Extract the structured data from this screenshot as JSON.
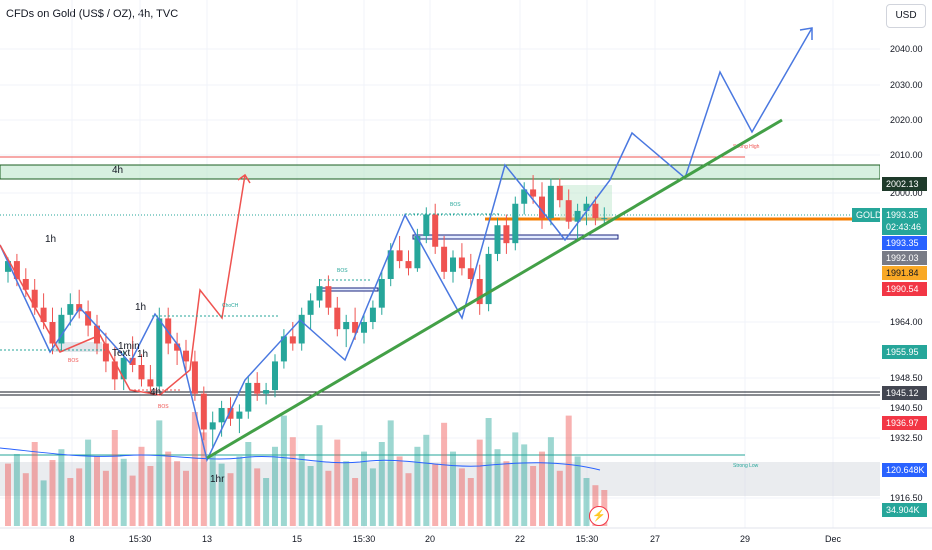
{
  "header": {
    "title": "CFDs on Gold (US$ / OZ), 4h, TVC",
    "currency_button": "USD"
  },
  "chart_data": {
    "type": "candlestick",
    "title": "CFDs on Gold (US$ / OZ), 4h, TVC",
    "y_ticks": [
      "2040.00",
      "2030.00",
      "2020.00",
      "2010.00",
      "2000.00",
      "1964.00",
      "1948.50",
      "1940.50",
      "1932.50",
      "1916.50"
    ],
    "x_ticks": [
      "8",
      "15:30",
      "13",
      "15",
      "15:30",
      "20",
      "22",
      "15:30",
      "27",
      "29",
      "Dec"
    ],
    "price_labels": [
      {
        "name": "zone-top",
        "value": "2002.13",
        "color": "#ffffff",
        "bg": "#1e3a2a"
      },
      {
        "name": "gold-last",
        "symbol": "GOLD",
        "value": "1993.35",
        "countdown": "02:43:46",
        "color": "#ffffff",
        "bg": "#26a69a"
      },
      {
        "name": "blue-price",
        "value": "1993.35",
        "color": "#ffffff",
        "bg": "#2962ff"
      },
      {
        "name": "gray-price",
        "value": "1992.03",
        "color": "#ffffff",
        "bg": "#787b86"
      },
      {
        "name": "orange-price",
        "value": "1991.84",
        "color": "#131722",
        "bg": "#f9a825"
      },
      {
        "name": "red-price",
        "value": "1990.54",
        "color": "#ffffff",
        "bg": "#f23645"
      },
      {
        "name": "level-1955",
        "value": "1955.95",
        "color": "#ffffff",
        "bg": "#26a69a"
      },
      {
        "name": "level-1945",
        "value": "1945.12",
        "color": "#ffffff",
        "bg": "#434651"
      },
      {
        "name": "level-1936",
        "value": "1936.97",
        "color": "#ffffff",
        "bg": "#f23645"
      },
      {
        "name": "volume-ma",
        "value": "120.648K",
        "color": "#ffffff",
        "bg": "#2962ff"
      },
      {
        "name": "volume-last",
        "value": "34.904K",
        "color": "#ffffff",
        "bg": "#26a69a"
      }
    ],
    "annotations": [
      "4h",
      "1h",
      "1h",
      "1min",
      "Text",
      "1h",
      "4h",
      "1hr",
      "BOS",
      "BOS",
      "BOS",
      "BOS",
      "ChoCH",
      "Strong High",
      "Strong Low"
    ],
    "colors": {
      "up": "#26a69a",
      "down": "#ef5350",
      "trendline": "#43a047",
      "projection": "#4a78e0",
      "orange_level": "#f57c00"
    },
    "candles": [
      [
        1978,
        1982,
        1975,
        1981
      ],
      [
        1981,
        1983,
        1974,
        1976
      ],
      [
        1976,
        1979,
        1971,
        1973
      ],
      [
        1973,
        1976,
        1966,
        1968
      ],
      [
        1968,
        1972,
        1962,
        1964
      ],
      [
        1964,
        1968,
        1955,
        1958
      ],
      [
        1958,
        1968,
        1956,
        1966
      ],
      [
        1966,
        1972,
        1963,
        1969
      ],
      [
        1969,
        1973,
        1965,
        1967
      ],
      [
        1967,
        1970,
        1960,
        1963
      ],
      [
        1963,
        1966,
        1955,
        1958
      ],
      [
        1958,
        1961,
        1950,
        1953
      ],
      [
        1953,
        1957,
        1945,
        1948
      ],
      [
        1948,
        1956,
        1945,
        1954
      ],
      [
        1954,
        1960,
        1950,
        1952
      ],
      [
        1952,
        1955,
        1946,
        1948
      ],
      [
        1948,
        1952,
        1944,
        1946
      ],
      [
        1946,
        1968,
        1945,
        1965
      ],
      [
        1965,
        1968,
        1955,
        1958
      ],
      [
        1958,
        1961,
        1952,
        1956
      ],
      [
        1956,
        1959,
        1950,
        1953
      ],
      [
        1953,
        1956,
        1942,
        1944
      ],
      [
        1944,
        1946,
        1931,
        1934
      ],
      [
        1934,
        1939,
        1929,
        1936
      ],
      [
        1936,
        1942,
        1932,
        1940
      ],
      [
        1940,
        1943,
        1935,
        1937
      ],
      [
        1937,
        1941,
        1933,
        1939
      ],
      [
        1939,
        1949,
        1937,
        1947
      ],
      [
        1947,
        1950,
        1942,
        1944
      ],
      [
        1944,
        1947,
        1941,
        1945
      ],
      [
        1945,
        1955,
        1943,
        1953
      ],
      [
        1953,
        1962,
        1951,
        1960
      ],
      [
        1960,
        1964,
        1956,
        1958
      ],
      [
        1958,
        1968,
        1956,
        1966
      ],
      [
        1966,
        1972,
        1962,
        1970
      ],
      [
        1970,
        1976,
        1968,
        1974
      ],
      [
        1974,
        1977,
        1966,
        1968
      ],
      [
        1968,
        1971,
        1960,
        1962
      ],
      [
        1962,
        1966,
        1957,
        1964
      ],
      [
        1964,
        1968,
        1959,
        1961
      ],
      [
        1961,
        1966,
        1958,
        1964
      ],
      [
        1964,
        1970,
        1962,
        1968
      ],
      [
        1968,
        1978,
        1966,
        1976
      ],
      [
        1976,
        1986,
        1974,
        1984
      ],
      [
        1984,
        1988,
        1979,
        1981
      ],
      [
        1981,
        1984,
        1977,
        1979
      ],
      [
        1979,
        1990,
        1978,
        1988
      ],
      [
        1988,
        1996,
        1986,
        1994
      ],
      [
        1994,
        1997,
        1983,
        1985
      ],
      [
        1985,
        1988,
        1976,
        1978
      ],
      [
        1978,
        1984,
        1975,
        1982
      ],
      [
        1982,
        1986,
        1977,
        1979
      ],
      [
        1979,
        1983,
        1974,
        1976
      ],
      [
        1976,
        1980,
        1966,
        1969
      ],
      [
        1969,
        1985,
        1967,
        1983
      ],
      [
        1983,
        1993,
        1981,
        1991
      ],
      [
        1991,
        1994,
        1983,
        1986
      ],
      [
        1986,
        1999,
        1984,
        1997
      ],
      [
        1997,
        2003,
        1994,
        2001
      ],
      [
        2001,
        2005,
        1997,
        1999
      ],
      [
        1999,
        2003,
        1990,
        1993
      ],
      [
        1993,
        2004,
        1991,
        2002
      ],
      [
        2002,
        2004,
        1996,
        1998
      ],
      [
        1998,
        2001,
        1990,
        1992
      ],
      [
        1992,
        1997,
        1987,
        1995
      ],
      [
        1995,
        1999,
        1991,
        1997
      ],
      [
        1997,
        1999,
        1991,
        1993
      ],
      [
        1993,
        1996,
        1991,
        1993
      ]
    ],
    "volumes": [
      [
        52,
        0
      ],
      [
        60,
        1
      ],
      [
        44,
        0
      ],
      [
        70,
        0
      ],
      [
        38,
        1
      ],
      [
        55,
        0
      ],
      [
        64,
        1
      ],
      [
        40,
        0
      ],
      [
        48,
        0
      ],
      [
        72,
        1
      ],
      [
        58,
        0
      ],
      [
        46,
        0
      ],
      [
        80,
        0
      ],
      [
        56,
        1
      ],
      [
        42,
        0
      ],
      [
        66,
        0
      ],
      [
        50,
        0
      ],
      [
        88,
        1
      ],
      [
        62,
        0
      ],
      [
        54,
        0
      ],
      [
        46,
        0
      ],
      [
        95,
        0
      ],
      [
        78,
        0
      ],
      [
        60,
        1
      ],
      [
        52,
        1
      ],
      [
        44,
        0
      ],
      [
        58,
        1
      ],
      [
        70,
        1
      ],
      [
        48,
        0
      ],
      [
        40,
        1
      ],
      [
        66,
        1
      ],
      [
        92,
        1
      ],
      [
        74,
        0
      ],
      [
        60,
        1
      ],
      [
        50,
        1
      ],
      [
        84,
        1
      ],
      [
        46,
        0
      ],
      [
        72,
        0
      ],
      [
        54,
        1
      ],
      [
        40,
        0
      ],
      [
        62,
        1
      ],
      [
        48,
        1
      ],
      [
        70,
        1
      ],
      [
        88,
        1
      ],
      [
        58,
        0
      ],
      [
        44,
        0
      ],
      [
        66,
        1
      ],
      [
        76,
        1
      ],
      [
        52,
        0
      ],
      [
        86,
        0
      ],
      [
        62,
        1
      ],
      [
        48,
        0
      ],
      [
        40,
        0
      ],
      [
        72,
        0
      ],
      [
        90,
        1
      ],
      [
        64,
        1
      ],
      [
        54,
        0
      ],
      [
        78,
        1
      ],
      [
        68,
        1
      ],
      [
        50,
        0
      ],
      [
        62,
        0
      ],
      [
        74,
        1
      ],
      [
        46,
        0
      ],
      [
        92,
        0
      ],
      [
        58,
        1
      ],
      [
        40,
        1
      ],
      [
        34,
        0
      ],
      [
        30,
        0
      ]
    ]
  }
}
